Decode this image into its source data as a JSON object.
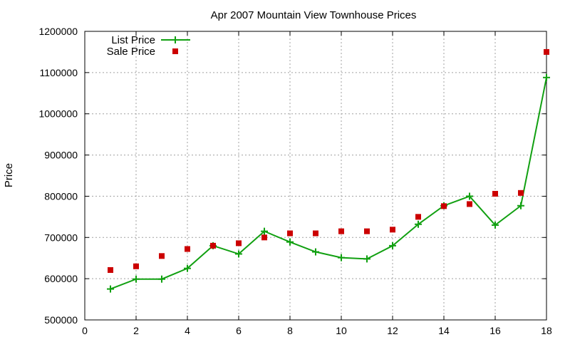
{
  "chart_data": {
    "type": "line",
    "title": "Apr 2007 Mountain View Townhouse Prices",
    "xlabel": "",
    "ylabel": "Price",
    "xlim": [
      0,
      18
    ],
    "ylim": [
      500000,
      1200000
    ],
    "x_ticks": [
      0,
      2,
      4,
      6,
      8,
      10,
      12,
      14,
      16,
      18
    ],
    "y_ticks": [
      500000,
      600000,
      700000,
      800000,
      900000,
      1000000,
      1100000,
      1200000
    ],
    "grid": true,
    "legend_position": "top-left",
    "series": [
      {
        "name": "List Price",
        "style": "line+plus",
        "color": "#11a011",
        "x": [
          1,
          2,
          3,
          4,
          5,
          6,
          7,
          8,
          9,
          10,
          11,
          12,
          13,
          14,
          15,
          16,
          17,
          18
        ],
        "y": [
          575000,
          599000,
          599000,
          625000,
          680000,
          660000,
          715000,
          689000,
          665000,
          651000,
          648000,
          680000,
          732000,
          777000,
          800000,
          730000,
          777000,
          1088000
        ]
      },
      {
        "name": "Sale Price",
        "style": "square",
        "color": "#cc0000",
        "x": [
          1,
          2,
          3,
          4,
          5,
          6,
          7,
          8,
          9,
          10,
          11,
          12,
          13,
          14,
          15,
          16,
          17,
          18
        ],
        "y": [
          621000,
          630000,
          655000,
          672000,
          680000,
          686000,
          700000,
          710000,
          710000,
          715000,
          715000,
          719000,
          750000,
          776000,
          781000,
          806000,
          808000,
          1150000
        ]
      }
    ]
  }
}
